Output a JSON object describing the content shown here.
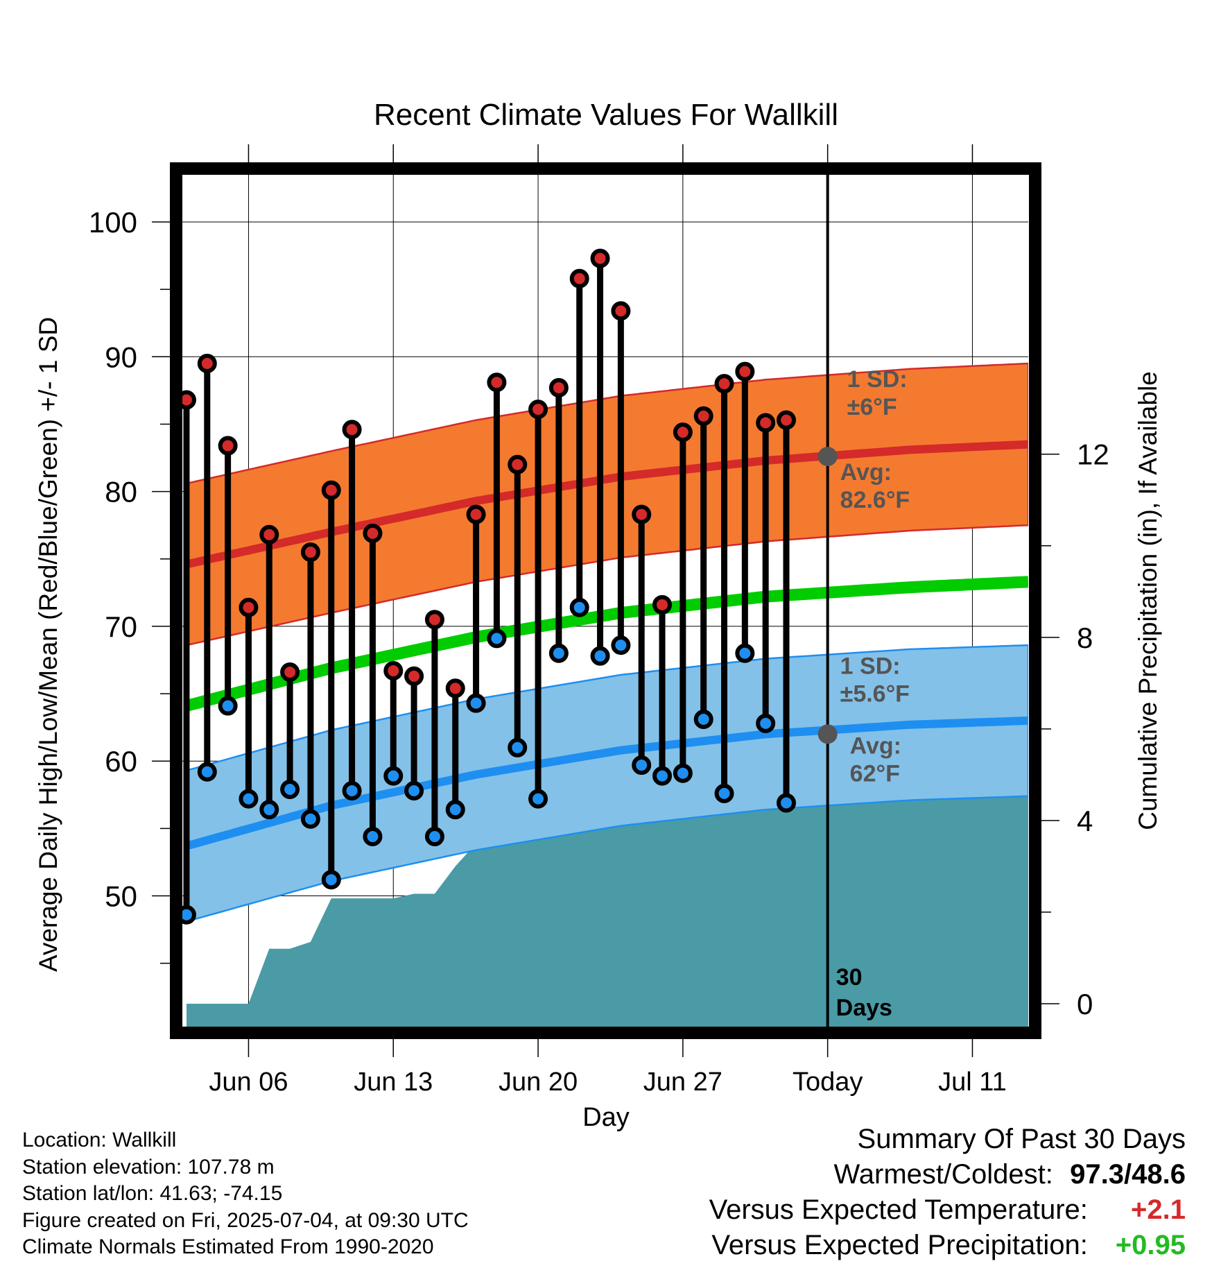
{
  "chart_data": {
    "type": "line",
    "title": "Recent Climate Values For Wallkill",
    "xlabel": "Day",
    "ylabel": "Average Daily High/Low/Mean (Red/Blue/Green) +/- 1 SD",
    "y2label": "Cumulative Precipitation (in), If Available",
    "x_ticks": [
      {
        "day": 6,
        "label": "Jun 06"
      },
      {
        "day": 13,
        "label": "Jun 13"
      },
      {
        "day": 20,
        "label": "Jun 20"
      },
      {
        "day": 27,
        "label": "Jun 27"
      },
      {
        "day": 34,
        "label": "Today"
      },
      {
        "day": 41,
        "label": "Jul 11"
      }
    ],
    "xlim": [
      2.8,
      43.7
    ],
    "ylim": [
      40.3,
      103.5
    ],
    "y_ticks": [
      50,
      60,
      70,
      80,
      90,
      100
    ],
    "y2lim": [
      -0.5,
      18.1
    ],
    "y2_ticks": [
      0,
      4,
      8,
      12
    ],
    "days": [
      3,
      4,
      5,
      6,
      7,
      8,
      9,
      10,
      11,
      12,
      13,
      14,
      15,
      16,
      17,
      18,
      19,
      20,
      21,
      22,
      23,
      24,
      25,
      26,
      27,
      28,
      29,
      30,
      31,
      32
    ],
    "highs": [
      86.8,
      89.5,
      83.4,
      71.4,
      76.8,
      66.6,
      75.5,
      80.1,
      84.6,
      76.9,
      66.7,
      66.3,
      70.5,
      65.4,
      78.3,
      88.1,
      82.0,
      86.1,
      87.7,
      95.8,
      97.3,
      93.4,
      78.3,
      71.6,
      84.4,
      85.6,
      88.0,
      88.9,
      85.1,
      85.3
    ],
    "lows": [
      48.6,
      59.2,
      64.1,
      57.2,
      56.4,
      57.9,
      55.7,
      51.2,
      57.8,
      54.4,
      58.9,
      57.8,
      54.4,
      56.4,
      64.3,
      69.1,
      61.0,
      57.2,
      68.0,
      71.4,
      67.8,
      68.6,
      59.7,
      58.9,
      59.1,
      63.1,
      57.6,
      68.0,
      62.8,
      56.9
    ],
    "normals_x": [
      3,
      10,
      17,
      24,
      31,
      38,
      43.7
    ],
    "normal_high": [
      74.6,
      77.0,
      79.3,
      81.1,
      82.3,
      83.1,
      83.5
    ],
    "normal_low": [
      53.7,
      56.7,
      59.0,
      60.8,
      62.0,
      62.7,
      63.0
    ],
    "normal_mean": [
      64.1,
      66.9,
      69.2,
      71.0,
      72.2,
      72.9,
      73.3
    ],
    "high_sd": 6,
    "low_sd": 5.6,
    "precip_x": [
      3,
      6,
      7,
      8,
      9,
      10,
      11,
      12,
      13,
      14,
      15,
      16,
      17,
      18,
      19,
      20,
      21,
      22,
      23,
      24,
      25,
      26,
      27,
      28,
      29,
      30,
      31,
      32,
      33,
      34,
      43.7
    ],
    "precip_cum": [
      0,
      0,
      1.2,
      1.2,
      1.35,
      2.3,
      2.3,
      2.3,
      2.3,
      2.4,
      2.4,
      3.0,
      3.5,
      3.9,
      3.9,
      3.9,
      4.0,
      4.0,
      4.0,
      4.0,
      4.2,
      4.5,
      4.5,
      4.5,
      4.5,
      4.9,
      4.9,
      5.1,
      5.1,
      5.1,
      5.1
    ],
    "annotations": {
      "high_sd_line1": "1 SD:",
      "high_sd_line2": "±6°F",
      "high_avg_line1": "Avg:",
      "high_avg_line2": "82.6°F",
      "high_avg_value": 82.6,
      "low_sd_line1": "1 SD:",
      "low_sd_line2": "±5.6°F",
      "low_avg_line1": "Avg:",
      "low_avg_value": 62,
      "low_avg_line2": "62°F",
      "days_line1": "30",
      "days_line2": "Days"
    },
    "colors": {
      "high_band": "#f47a30",
      "high_line": "#d42a2a",
      "low_band": "#84c1e8",
      "low_line": "#1e8ff0",
      "mean_line": "#00cc00",
      "precip": "#4a9ba5",
      "high_dot": "#d42a2a",
      "low_dot": "#1e8ff0",
      "annotation": "#555555"
    }
  },
  "footer": {
    "location": "Location: Wallkill",
    "elevation": "Station elevation: 107.78 m",
    "latlon": "Station lat/lon: 41.63; -74.15",
    "created": "Figure created on Fri, 2025-07-04, at 09:30 UTC",
    "normals": "Climate Normals Estimated From 1990-2020"
  },
  "summary": {
    "title": "Summary Of Past 30 Days",
    "warm_label": "Warmest/Coldest:",
    "warm_value_hi": "97.3",
    "warm_sep": "/",
    "warm_value_lo": "48.6",
    "temp_label": "Versus Expected Temperature:",
    "temp_value": "+2.1",
    "temp_color": "#d42a2a",
    "precip_label": "Versus Expected Precipitation:",
    "precip_value": "+0.95",
    "precip_color": "#22bb22"
  }
}
